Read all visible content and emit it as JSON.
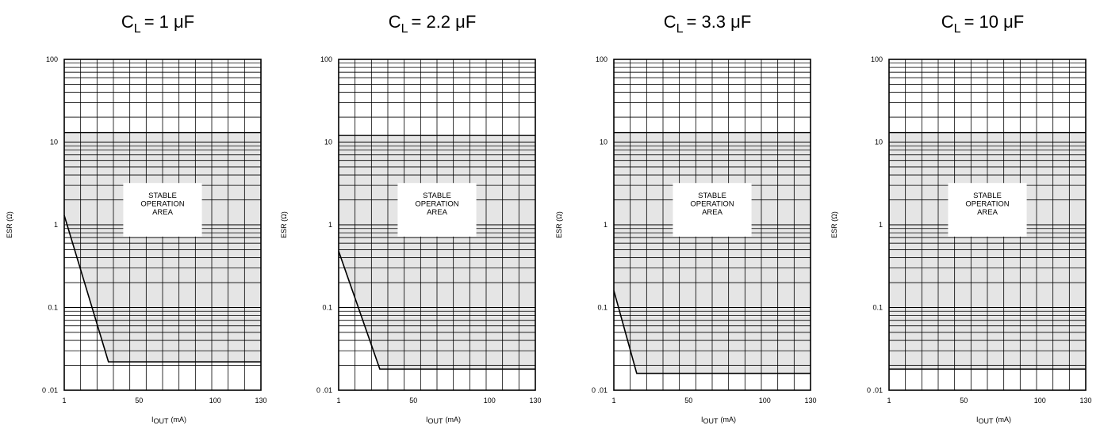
{
  "chart_data": [
    {
      "type": "area",
      "title_prefix": "C",
      "title_sub": "L",
      "title_value": "= 1 μF",
      "xlabel_main": "I",
      "xlabel_sub": "OUT",
      "xlabel_unit": "(mA)",
      "ylabel": "ESR (Ω)",
      "x_scale": "linear",
      "y_scale": "log",
      "xlim": [
        1,
        130
      ],
      "ylim": [
        0.01,
        100
      ],
      "x_ticks": [
        "1",
        "50",
        "100",
        "130"
      ],
      "y_ticks": [
        "100",
        "10",
        "1",
        "0.1",
        "0 .01"
      ],
      "grid": true,
      "region_label": [
        "STABLE",
        "OPERATION",
        "AREA"
      ],
      "stable_upper_esr": 13,
      "stable_lower_boundary": [
        {
          "x": 1,
          "y": 1.3
        },
        {
          "x": 30,
          "y": 0.022
        },
        {
          "x": 130,
          "y": 0.022
        }
      ]
    },
    {
      "type": "area",
      "title_prefix": "C",
      "title_sub": "L",
      "title_value": "= 2.2  μF",
      "xlabel_main": "I",
      "xlabel_sub": "OUT",
      "xlabel_unit": "(mA)",
      "ylabel": "ESR (Ω)",
      "x_scale": "linear",
      "y_scale": "log",
      "xlim": [
        1,
        130
      ],
      "ylim": [
        0.01,
        100
      ],
      "x_ticks": [
        "1",
        "50",
        "100",
        "130"
      ],
      "y_ticks": [
        "100",
        "10",
        "1",
        "0.1",
        "0 .01"
      ],
      "grid": true,
      "region_label": [
        "STABLE",
        "OPERATION",
        "AREA"
      ],
      "stable_upper_esr": 12,
      "stable_lower_boundary": [
        {
          "x": 1,
          "y": 0.48
        },
        {
          "x": 28,
          "y": 0.018
        },
        {
          "x": 130,
          "y": 0.018
        }
      ]
    },
    {
      "type": "area",
      "title_prefix": "C",
      "title_sub": "L",
      "title_value": "= 3.3  μF",
      "xlabel_main": "I",
      "xlabel_sub": "OUT",
      "xlabel_unit": "(mA)",
      "ylabel": "ESR (Ω)",
      "x_scale": "linear",
      "y_scale": "log",
      "xlim": [
        1,
        130
      ],
      "ylim": [
        0.01,
        100
      ],
      "x_ticks": [
        "1",
        "50",
        "100",
        "130"
      ],
      "y_ticks": [
        "100",
        "10",
        "1",
        "0.1",
        "0 .01"
      ],
      "grid": true,
      "region_label": [
        "STABLE",
        "OPERATION",
        "AREA"
      ],
      "stable_upper_esr": 13,
      "stable_lower_boundary": [
        {
          "x": 1,
          "y": 0.16
        },
        {
          "x": 16,
          "y": 0.016
        },
        {
          "x": 130,
          "y": 0.016
        }
      ]
    },
    {
      "type": "area",
      "title_prefix": "C",
      "title_sub": "L",
      "title_value": "= 10  μF",
      "xlabel_main": "I",
      "xlabel_sub": "OUT",
      "xlabel_unit": "(mA)",
      "ylabel": "ESR (Ω)",
      "x_scale": "linear",
      "y_scale": "log",
      "xlim": [
        1,
        130
      ],
      "ylim": [
        0.01,
        100
      ],
      "x_ticks": [
        "1",
        "50",
        "100",
        "130"
      ],
      "y_ticks": [
        "100",
        "10",
        "1",
        "0.1",
        "0 .01"
      ],
      "grid": true,
      "region_label": [
        "STABLE",
        "OPERATION",
        "AREA"
      ],
      "stable_upper_esr": 13,
      "stable_lower_boundary": [
        {
          "x": 1,
          "y": 0.018
        },
        {
          "x": 130,
          "y": 0.018
        }
      ]
    }
  ]
}
